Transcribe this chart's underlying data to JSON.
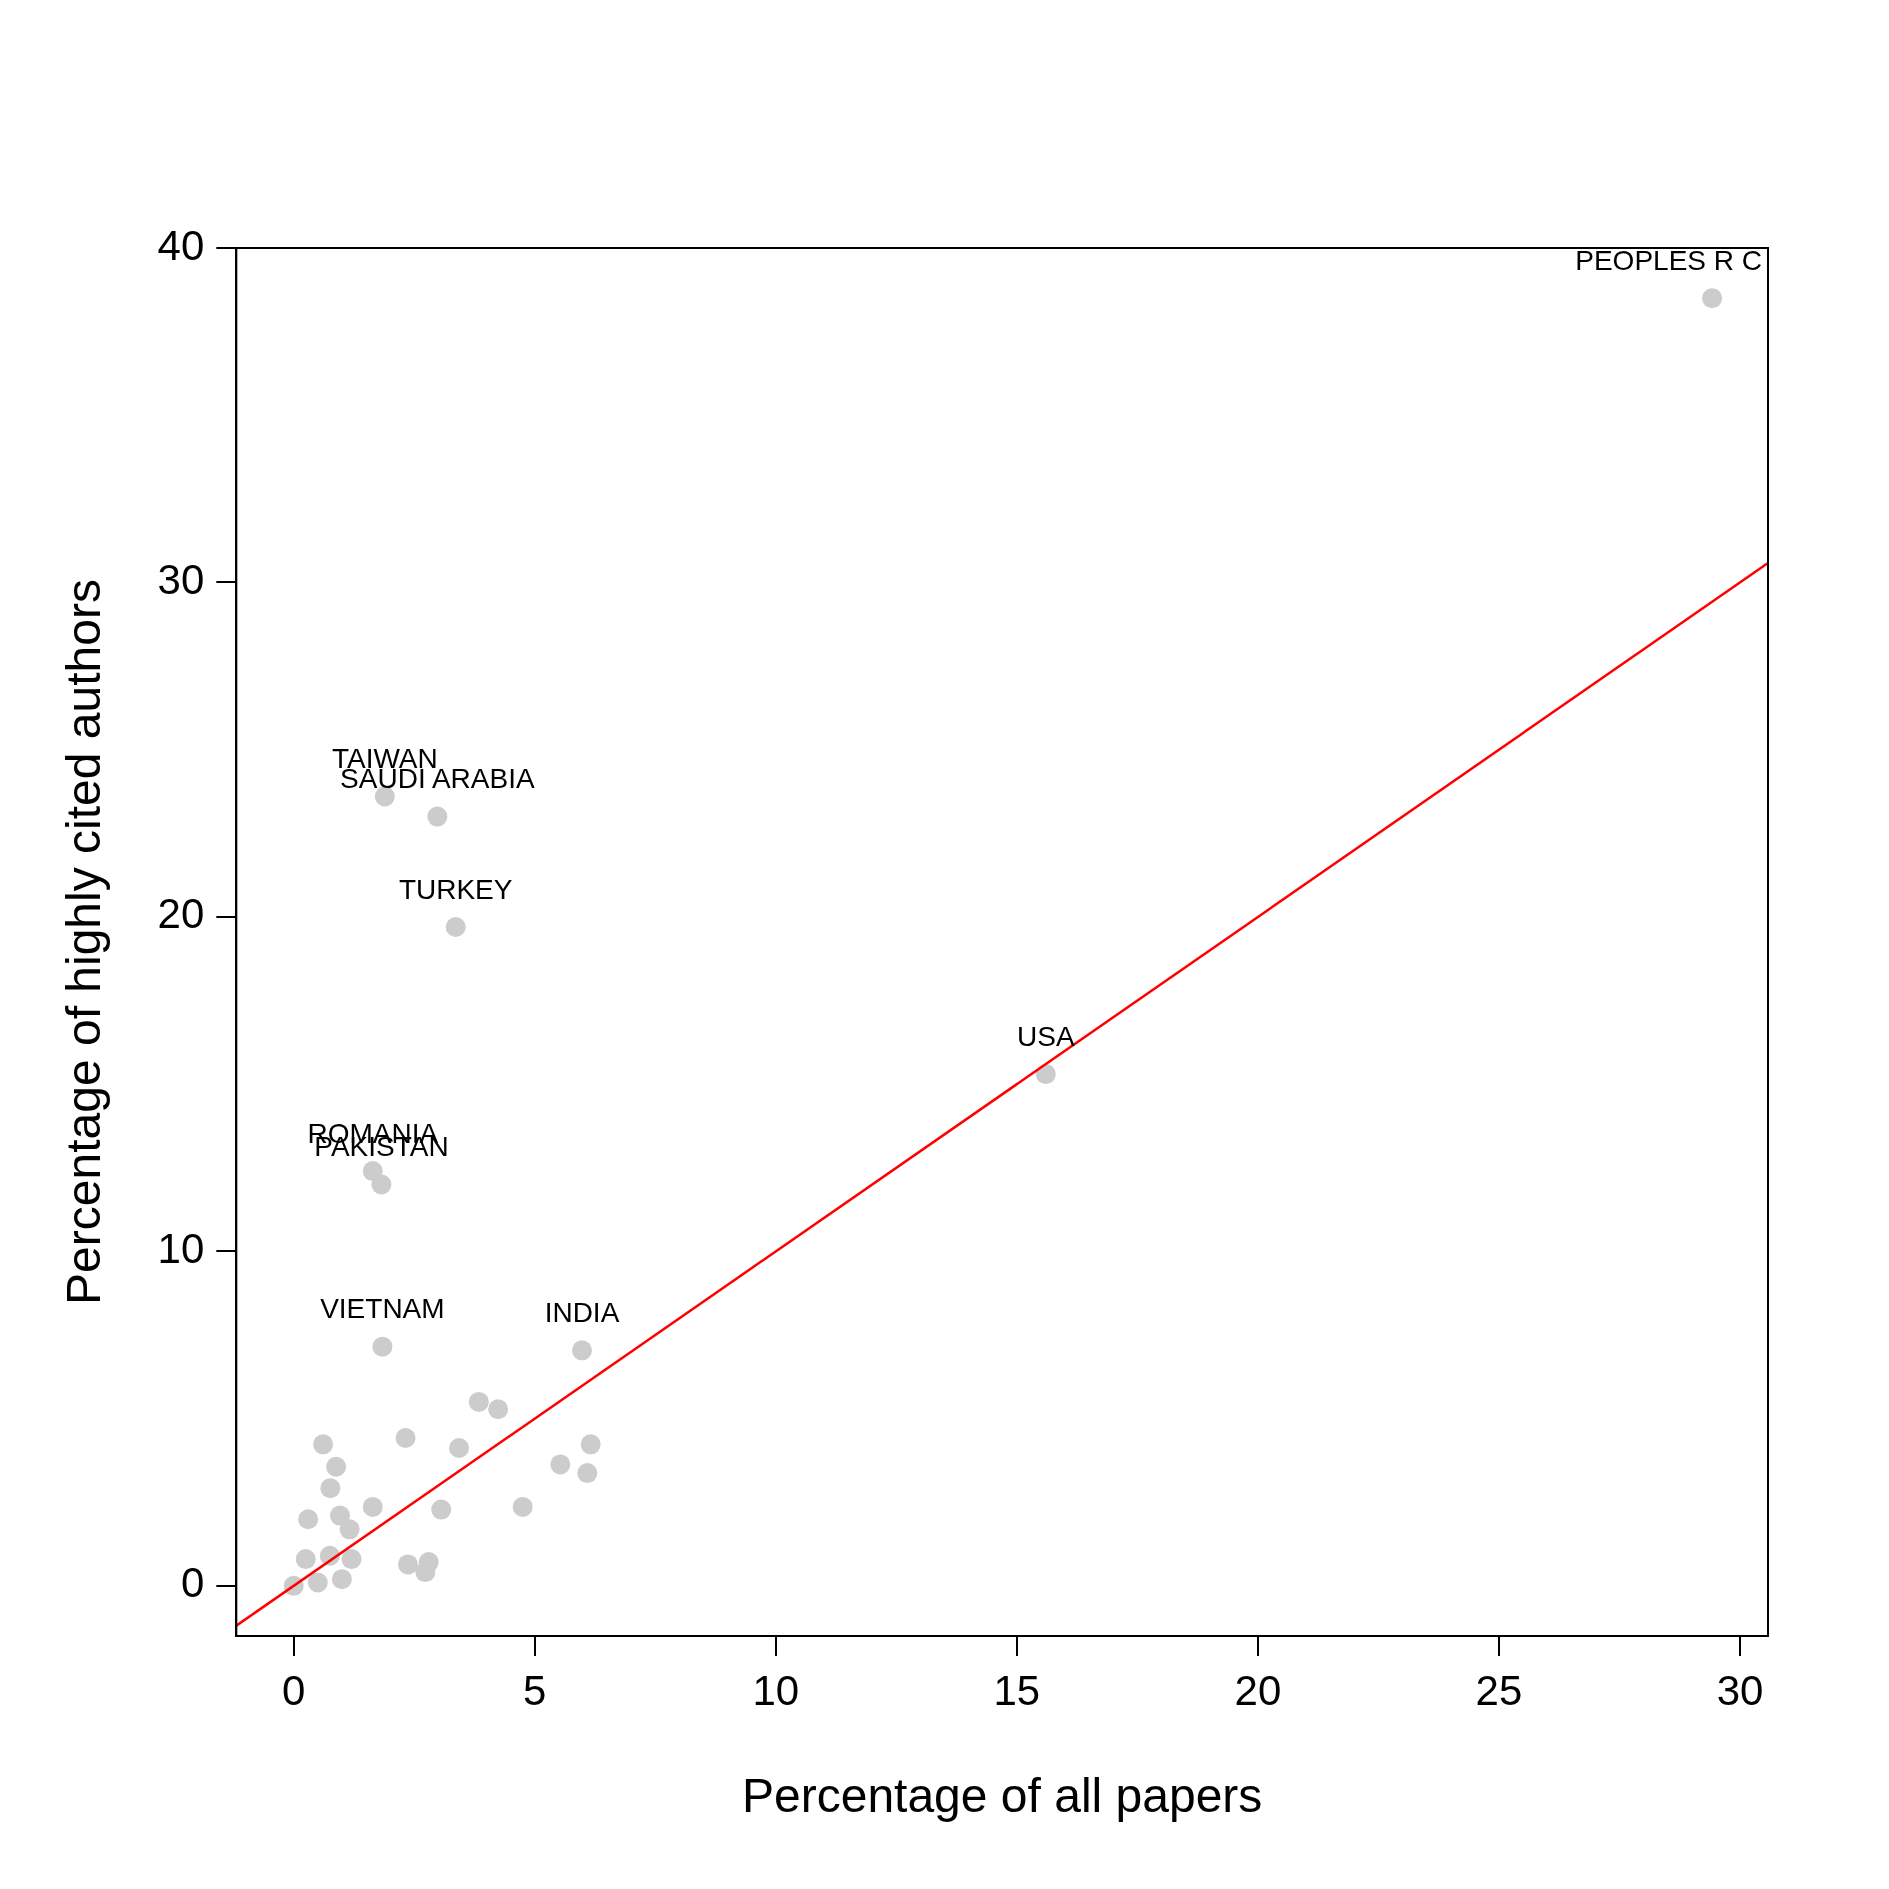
{
  "chart_data": {
    "type": "scatter",
    "xlabel": "Percentage of all papers",
    "ylabel": "Percentage of highly cited authors",
    "xlim": [
      -1.19,
      30.58
    ],
    "ylim": [
      -1.5,
      40
    ],
    "xticks": [
      0,
      5,
      10,
      15,
      20,
      25,
      30
    ],
    "yticks": [
      0,
      10,
      20,
      30,
      40
    ],
    "grid": false,
    "legend": false,
    "marker": "circle",
    "series": [
      {
        "color": "#cccccc",
        "x": [
          29.42,
          1.89,
          2.98,
          3.36,
          15.6,
          1.64,
          1.82,
          1.84,
          5.98,
          3.84,
          4.24,
          2.32,
          3.43,
          0.61,
          0.88,
          0.76,
          5.53,
          6.16,
          6.09,
          4.75,
          3.06,
          1.64,
          0.96,
          0.3,
          1.16,
          2.37,
          2.8,
          2.73,
          0,
          0.5,
          1.0,
          0.25,
          0.75,
          1.2
        ],
        "values": [
          38.5,
          23.6,
          23.0,
          19.7,
          15.3,
          12.4,
          12.0,
          7.15,
          7.04,
          5.5,
          5.28,
          4.42,
          4.12,
          4.23,
          3.56,
          2.92,
          3.63,
          4.23,
          3.37,
          2.36,
          2.28,
          2.36,
          2.1,
          1.99,
          1.69,
          0.64,
          0.71,
          0.41,
          0,
          0.1,
          0.2,
          0.8,
          0.9,
          0.8
        ]
      },
      {
        "type": "line",
        "marker": "none",
        "color": "#ff0000",
        "x": [
          -1.19,
          30.58
        ],
        "values": [
          -1.19,
          30.58
        ]
      }
    ],
    "annotations": [
      {
        "text": "PEOPLES R C",
        "x": 29.42,
        "y": 38.5
      },
      {
        "text": "TAIWAN",
        "x": 1.89,
        "y": 23.6
      },
      {
        "text": "SAUDI ARABIA",
        "x": 2.98,
        "y": 23.0
      },
      {
        "text": "TURKEY",
        "x": 3.36,
        "y": 19.7
      },
      {
        "text": "USA",
        "x": 15.6,
        "y": 15.3
      },
      {
        "text": "ROMANIA",
        "x": 1.64,
        "y": 12.4
      },
      {
        "text": "PAKISTAN",
        "x": 1.82,
        "y": 12.0
      },
      {
        "text": "VIETNAM",
        "x": 1.84,
        "y": 7.15
      },
      {
        "text": "INDIA",
        "x": 5.98,
        "y": 7.04
      }
    ]
  }
}
